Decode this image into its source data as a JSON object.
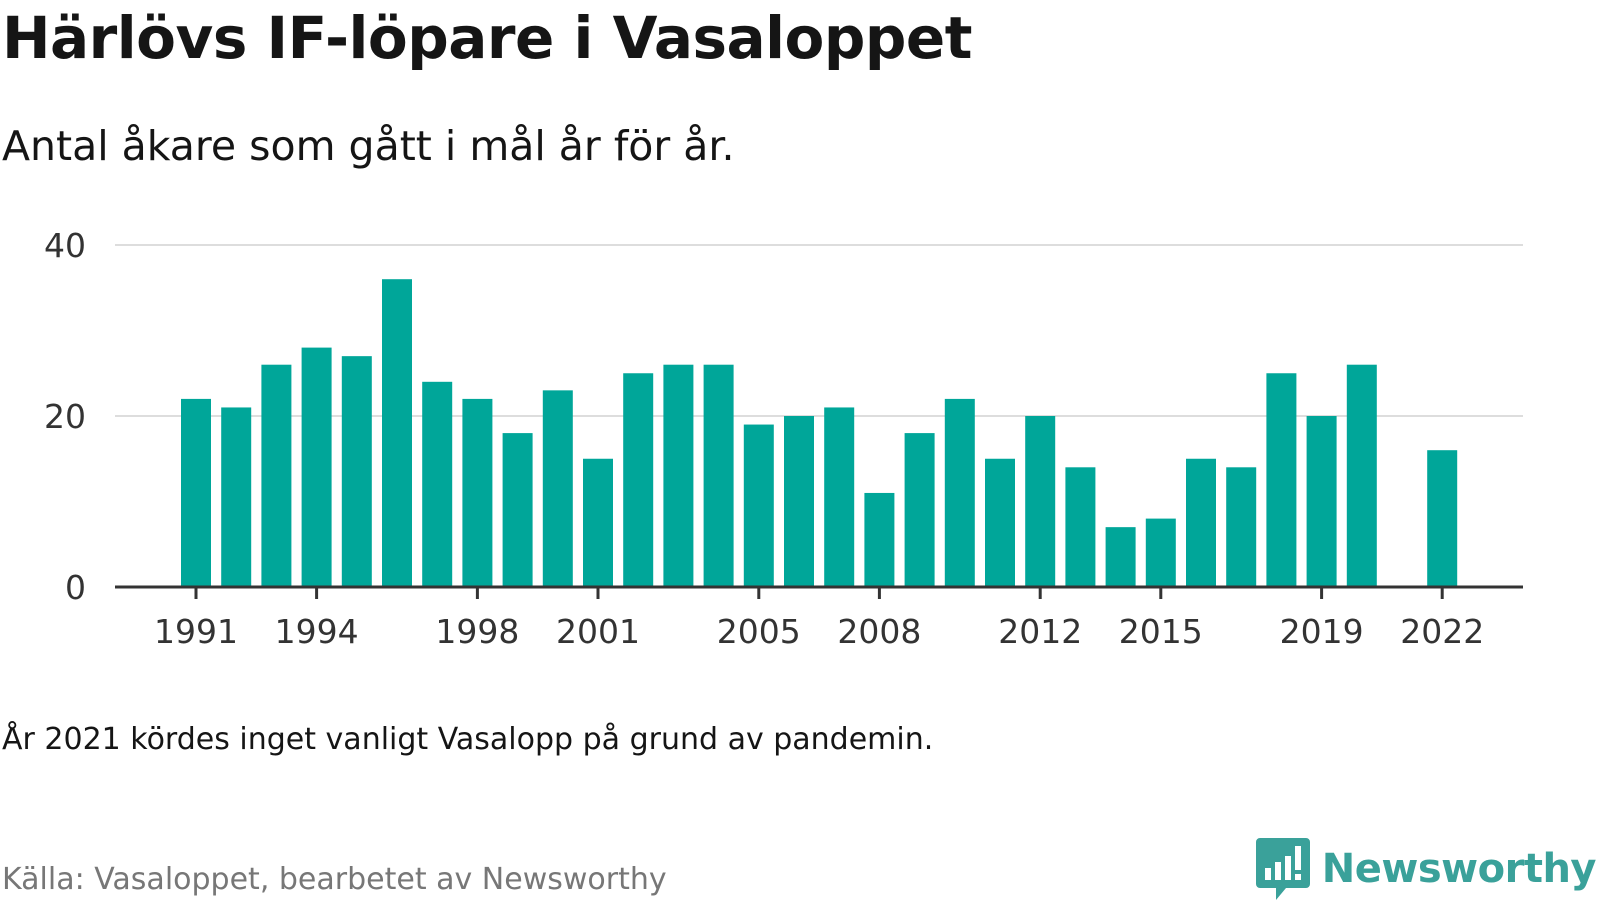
{
  "header": {
    "title": "Härlövs IF-löpare i Vasaloppet",
    "subtitle": "Antal åkare som gått i mål år för år."
  },
  "footer": {
    "note": "År 2021 kördes inget vanligt Vasalopp på grund av pandemin.",
    "source": "Källa: Vasaloppet, bearbetet av Newsworthy",
    "brand_name": "Newsworthy",
    "brand_icon": "newsworthy-logo-icon"
  },
  "colors": {
    "bar": "#00a699",
    "grid": "#dddddd",
    "axis": "#333333",
    "brand": "#3aa19a"
  },
  "chart_data": {
    "type": "bar",
    "categories": [
      "1991",
      "1992",
      "1993",
      "1994",
      "1995",
      "1996",
      "1997",
      "1998",
      "1999",
      "2000",
      "2001",
      "2002",
      "2003",
      "2004",
      "2005",
      "2006",
      "2007",
      "2008",
      "2009",
      "2010",
      "2011",
      "2012",
      "2013",
      "2014",
      "2015",
      "2016",
      "2017",
      "2018",
      "2019",
      "2020",
      "2021",
      "2022"
    ],
    "values": [
      22,
      21,
      26,
      28,
      27,
      36,
      24,
      22,
      18,
      23,
      15,
      25,
      26,
      26,
      19,
      20,
      21,
      11,
      18,
      22,
      15,
      20,
      14,
      7,
      8,
      15,
      14,
      25,
      20,
      26,
      null,
      16
    ],
    "x_tick_labels": [
      "1991",
      "1994",
      "1998",
      "2001",
      "2005",
      "2008",
      "2012",
      "2015",
      "2019",
      "2022"
    ],
    "y_ticks": [
      0,
      20,
      40
    ],
    "ylim": [
      0,
      40
    ],
    "grid": true,
    "title": "Härlövs IF-löpare i Vasaloppet",
    "subtitle": "Antal åkare som gått i mål år för år."
  }
}
